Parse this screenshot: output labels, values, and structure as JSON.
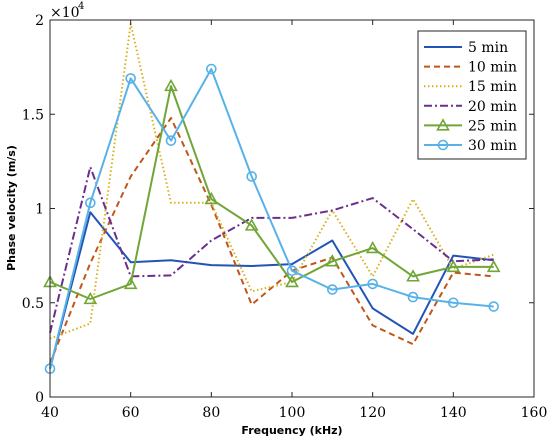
{
  "chart_data": {
    "type": "line",
    "xlabel": "Frequency (kHz)",
    "ylabel": "Phase velocity (m/s)",
    "xlim": [
      40,
      160
    ],
    "ylim": [
      0,
      20000
    ],
    "xticks": [
      40,
      60,
      80,
      100,
      120,
      140,
      160
    ],
    "yticks": [
      0,
      5000,
      10000,
      15000,
      20000
    ],
    "ytick_labels": [
      "0",
      "0.5",
      "1",
      "1.5",
      "2"
    ],
    "y_exponent": {
      "base": "×10",
      "power": "4"
    },
    "legend_position": "top-right",
    "grid": false,
    "x": [
      40,
      50,
      60,
      70,
      80,
      90,
      100,
      110,
      120,
      130,
      140,
      150
    ],
    "series": [
      {
        "name": "5 min",
        "color": "#2254b8",
        "dash": "",
        "marker": "none",
        "values": [
          1500,
          9800,
          7150,
          7250,
          7000,
          6950,
          7050,
          8300,
          4700,
          3350,
          7500,
          7250
        ]
      },
      {
        "name": "10 min",
        "color": "#c0561c",
        "dash": "6,4",
        "marker": "none",
        "values": [
          1800,
          7100,
          11700,
          14800,
          10200,
          4900,
          6700,
          7400,
          3800,
          2800,
          6600,
          6400
        ]
      },
      {
        "name": "15 min",
        "color": "#d9b01c",
        "dash": "1.5,2.5",
        "marker": "none",
        "values": [
          3100,
          3900,
          19800,
          10300,
          10300,
          5600,
          6100,
          9900,
          6400,
          10500,
          6800,
          7550
        ]
      },
      {
        "name": "20 min",
        "color": "#6a2f8e",
        "dash": "8,3,2,3",
        "marker": "none",
        "values": [
          3400,
          12200,
          6400,
          6450,
          8300,
          9500,
          9500,
          9900,
          10550,
          8900,
          7200,
          7300
        ]
      },
      {
        "name": "25 min",
        "color": "#70a537",
        "dash": "",
        "marker": "triangle",
        "values": [
          6100,
          5200,
          6000,
          16500,
          10500,
          9100,
          6100,
          7200,
          7900,
          6400,
          6900,
          6900
        ]
      },
      {
        "name": "30 min",
        "color": "#58b2e8",
        "dash": "",
        "marker": "circle",
        "values": [
          1500,
          10300,
          16900,
          13600,
          17400,
          11700,
          6700,
          5700,
          6000,
          5300,
          5000,
          4800
        ]
      }
    ]
  }
}
